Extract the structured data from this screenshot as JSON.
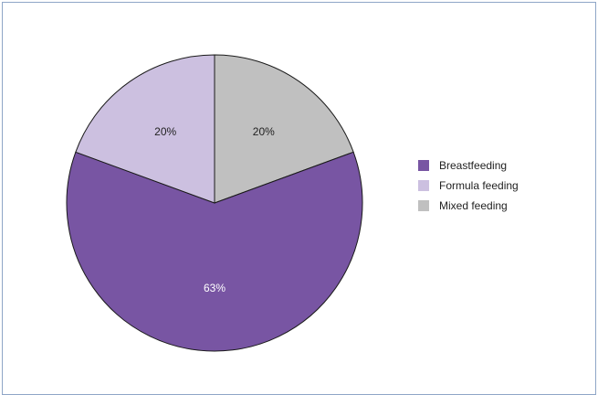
{
  "chart_data": {
    "type": "pie",
    "categories": [
      "Breastfeeding",
      "Formula feeding",
      "Mixed feeding"
    ],
    "values": [
      63,
      20,
      20
    ],
    "value_labels": [
      "63%",
      "20%",
      "20%"
    ],
    "colors": [
      "#7855a3",
      "#ccc0e0",
      "#c0c0c0"
    ],
    "label_colors": [
      "#ffffff",
      "#222222",
      "#222222"
    ],
    "legend_placement": "right",
    "title": ""
  }
}
